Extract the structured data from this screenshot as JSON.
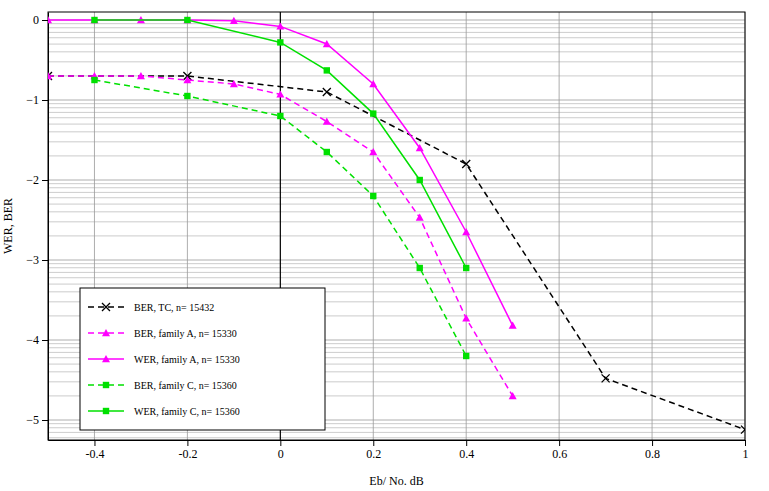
{
  "chart_data": {
    "type": "line",
    "x_label": "Eb/ No. dB",
    "y_label": "WER, BER",
    "xlim": [
      -0.5,
      1.0
    ],
    "ylim": [
      -5.25,
      0.1
    ],
    "xticks": [
      -0.4,
      -0.2,
      0,
      0.2,
      0.4,
      0.6,
      0.8,
      1
    ],
    "yticks": [
      0,
      -1,
      -2,
      -3,
      -4,
      -5
    ],
    "grid": true,
    "legend": "lower left",
    "series": [
      {
        "name": "BER, TC, n= 15432",
        "color": "#000000",
        "marker": "x",
        "line_style": "dashed",
        "x": [
          -0.5,
          -0.2,
          0.1,
          0.4,
          0.7,
          1.0
        ],
        "values": [
          -0.7,
          -0.7,
          -0.9,
          -1.8,
          -4.48,
          -5.12
        ]
      },
      {
        "name": "BER, family A, n= 15330",
        "color": "#ff00ff",
        "marker": "triangle",
        "line_style": "dashed",
        "x": [
          -0.5,
          -0.4,
          -0.3,
          -0.2,
          -0.1,
          0,
          0.1,
          0.2,
          0.3,
          0.4,
          0.5
        ],
        "values": [
          -0.7,
          -0.7,
          -0.7,
          -0.75,
          -0.8,
          -0.93,
          -1.27,
          -1.65,
          -2.47,
          -3.73,
          -4.7
        ]
      },
      {
        "name": "WER, family A, n= 15330",
        "color": "#ff00ff",
        "marker": "triangle",
        "line_style": "solid",
        "x": [
          -0.5,
          -0.4,
          -0.3,
          -0.2,
          -0.1,
          0,
          0.1,
          0.2,
          0.3,
          0.4,
          0.5
        ],
        "values": [
          0,
          0,
          0,
          0,
          -0.01,
          -0.08,
          -0.3,
          -0.8,
          -1.6,
          -2.65,
          -3.82
        ]
      },
      {
        "name": "BER, family C, n= 15360",
        "color": "#00e000",
        "marker": "square",
        "line_style": "dashed",
        "x": [
          -0.4,
          -0.2,
          0,
          0.1,
          0.2,
          0.3,
          0.4
        ],
        "values": [
          -0.75,
          -0.95,
          -1.2,
          -1.65,
          -2.2,
          -3.1,
          -4.2
        ]
      },
      {
        "name": "WER, family C, n= 15360",
        "color": "#00e000",
        "marker": "square",
        "line_style": "solid",
        "x": [
          -0.4,
          -0.2,
          0,
          0.1,
          0.2,
          0.3,
          0.4
        ],
        "values": [
          0,
          0,
          -0.28,
          -0.63,
          -1.17,
          -2.0,
          -3.1
        ]
      }
    ]
  }
}
